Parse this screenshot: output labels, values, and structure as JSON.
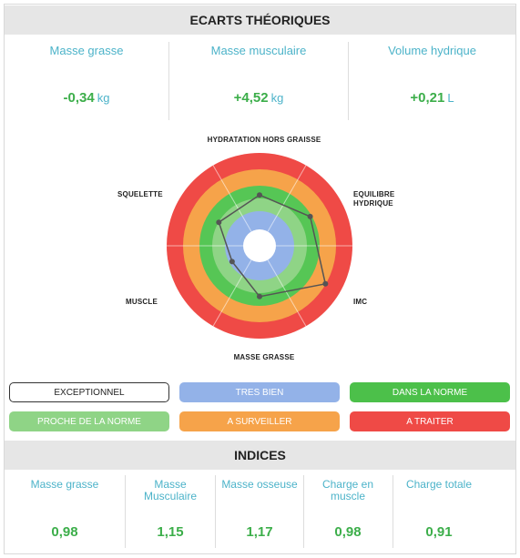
{
  "ecarts": {
    "title": "ECARTS THÉORIQUES",
    "metrics": [
      {
        "label": "Masse grasse",
        "value": "-0,34",
        "unit": "kg"
      },
      {
        "label": "Masse musculaire",
        "value": "+4,52",
        "unit": "kg"
      },
      {
        "label": "Volume hydrique",
        "value": "+0,21",
        "unit": "L"
      }
    ]
  },
  "radar": {
    "axes": [
      "HYDRATATION HORS GRAISSE",
      "EQUILIBRE HYDRIQUE",
      "IMC",
      "MASSE GRASSE",
      "MUSCLE",
      "SQUELETTE"
    ],
    "zone_colors": [
      "#ef4a46",
      "#f6a34a",
      "#56c655",
      "#8fd486",
      "#93b2e8"
    ],
    "values": [
      0.45,
      0.55,
      0.78,
      0.45,
      0.2,
      0.4
    ],
    "line_color": "#555555"
  },
  "legend": [
    {
      "label": "EXCEPTIONNEL",
      "bg": "#ffffff",
      "fg": "#222222",
      "border": "#333333"
    },
    {
      "label": "TRES BIEN",
      "bg": "#93b2e8",
      "fg": "#ffffff",
      "border": "#93b2e8"
    },
    {
      "label": "DANS LA NORME",
      "bg": "#4cc04a",
      "fg": "#ffffff",
      "border": "#4cc04a"
    },
    {
      "label": "PROCHE DE LA NORME",
      "bg": "#8fd486",
      "fg": "#ffffff",
      "border": "#8fd486"
    },
    {
      "label": "A SURVEILLER",
      "bg": "#f6a34a",
      "fg": "#ffffff",
      "border": "#f6a34a"
    },
    {
      "label": "A TRAITER",
      "bg": "#ef4a46",
      "fg": "#ffffff",
      "border": "#ef4a46"
    }
  ],
  "indices": {
    "title": "INDICES",
    "items": [
      {
        "label": "Masse grasse",
        "value": "0,98"
      },
      {
        "label": "Masse Musculaire",
        "value": "1,15"
      },
      {
        "label": "Masse osseuse",
        "value": "1,17"
      },
      {
        "label": "Charge en muscle",
        "value": "0,98"
      },
      {
        "label": "Charge totale",
        "value": "0,91"
      }
    ]
  }
}
